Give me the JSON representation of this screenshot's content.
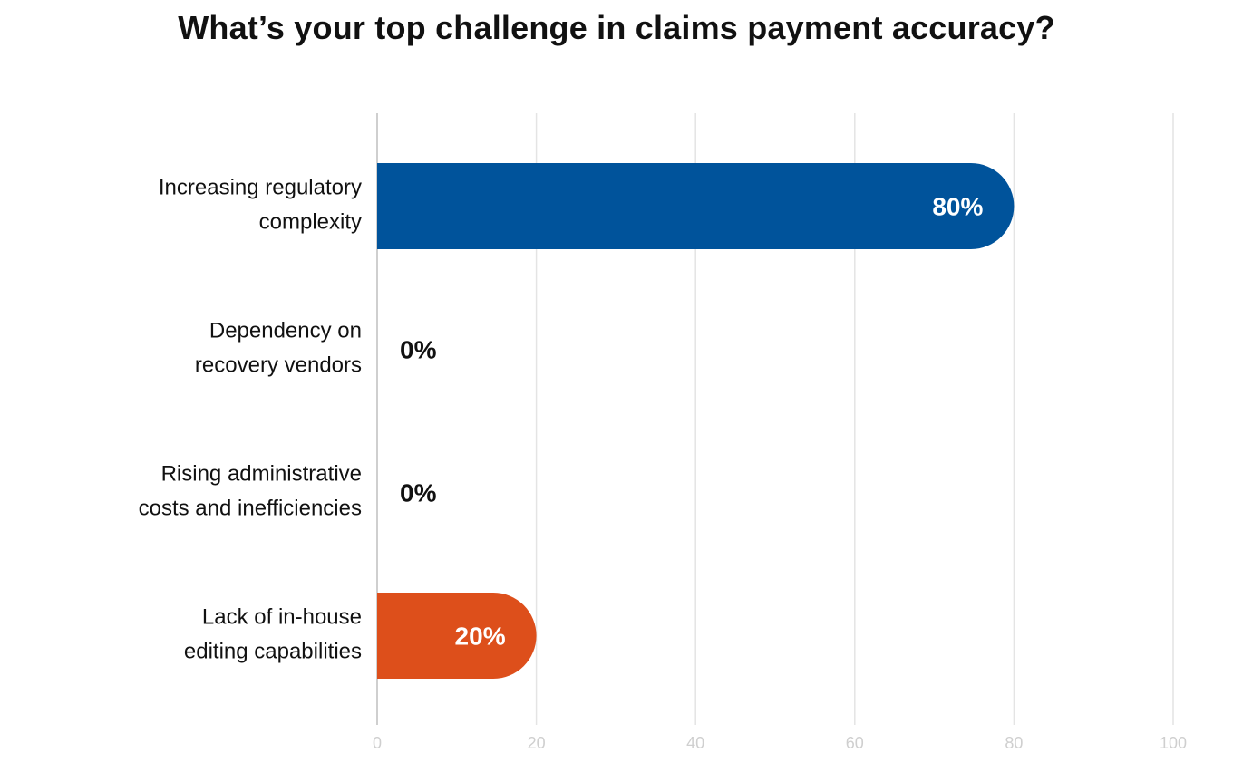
{
  "chart_data": {
    "type": "bar",
    "orientation": "horizontal",
    "title": "What’s your top challenge in claims payment accuracy?",
    "categories": [
      [
        "Increasing regulatory",
        "complexity"
      ],
      [
        "Dependency on",
        "recovery vendors"
      ],
      [
        "Rising administrative",
        "costs and inefficiencies"
      ],
      [
        "Lack of in-house",
        "editing capabilities"
      ]
    ],
    "values": [
      80,
      0,
      0,
      20
    ],
    "value_labels": [
      "80%",
      "0%",
      "0%",
      "20%"
    ],
    "bar_colors": [
      "#00539b",
      "#00539b",
      "#00539b",
      "#dd4f1b"
    ],
    "xlim": [
      0,
      100
    ],
    "xticks": [
      0,
      20,
      40,
      60,
      80,
      100
    ],
    "xtick_labels": [
      "0",
      "20",
      "40",
      "60",
      "80",
      "100"
    ],
    "grid": true,
    "xlabel": "",
    "ylabel": ""
  }
}
